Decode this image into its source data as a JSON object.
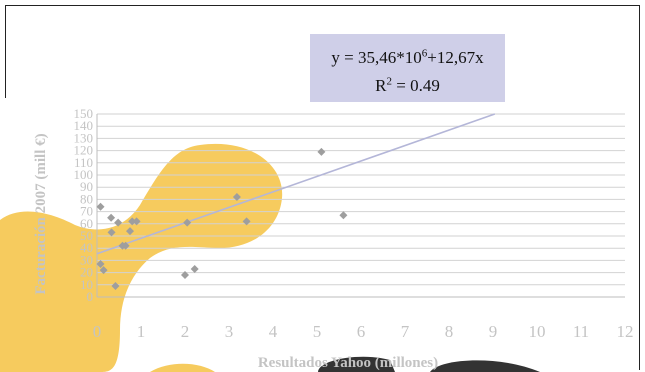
{
  "chart_data": {
    "type": "scatter",
    "xlabel": "Resultados Yahoo (millones)",
    "ylabel": "Facturación 2007 (mill €)",
    "xlim": [
      0,
      12
    ],
    "ylim": [
      0,
      150
    ],
    "x_ticks": [
      "0",
      "1",
      "2",
      "3",
      "4",
      "5",
      "6",
      "7",
      "8",
      "9",
      "10",
      "11",
      "12"
    ],
    "y_ticks": [
      "0",
      "10",
      "20",
      "30",
      "40",
      "50",
      "60",
      "70",
      "80",
      "90",
      "100",
      "110",
      "120",
      "130",
      "140",
      "150"
    ],
    "grid": "horizontal",
    "equation": {
      "lhs": "y = 35,46*10",
      "exp": "6",
      "rhs": "+12,67x",
      "r2_label": "R",
      "r2_exp": "2",
      "r2_value": " = 0.49"
    },
    "trendline": {
      "intercept": 35.46,
      "slope": 12.67
    },
    "series": [
      {
        "points": [
          {
            "x": 0.08,
            "y": 74
          },
          {
            "x": 0.08,
            "y": 27
          },
          {
            "x": 0.15,
            "y": 22
          },
          {
            "x": 0.32,
            "y": 65
          },
          {
            "x": 0.33,
            "y": 53
          },
          {
            "x": 0.42,
            "y": 9
          },
          {
            "x": 0.48,
            "y": 61
          },
          {
            "x": 0.58,
            "y": 42
          },
          {
            "x": 0.65,
            "y": 42
          },
          {
            "x": 0.75,
            "y": 54
          },
          {
            "x": 0.8,
            "y": 62
          },
          {
            "x": 0.9,
            "y": 62
          },
          {
            "x": 2.0,
            "y": 18
          },
          {
            "x": 2.05,
            "y": 61
          },
          {
            "x": 2.22,
            "y": 23
          },
          {
            "x": 3.18,
            "y": 82
          },
          {
            "x": 3.4,
            "y": 62
          },
          {
            "x": 5.1,
            "y": 119
          },
          {
            "x": 5.6,
            "y": 67
          }
        ]
      }
    ],
    "colors": {
      "points": "#9e9e9e",
      "trendline": "#b4b6d8",
      "grid": "#d2d2d2",
      "axis_text": "#c4c4c4",
      "equation_bg": "#cfcfe8",
      "blob": "#f5c242"
    }
  }
}
